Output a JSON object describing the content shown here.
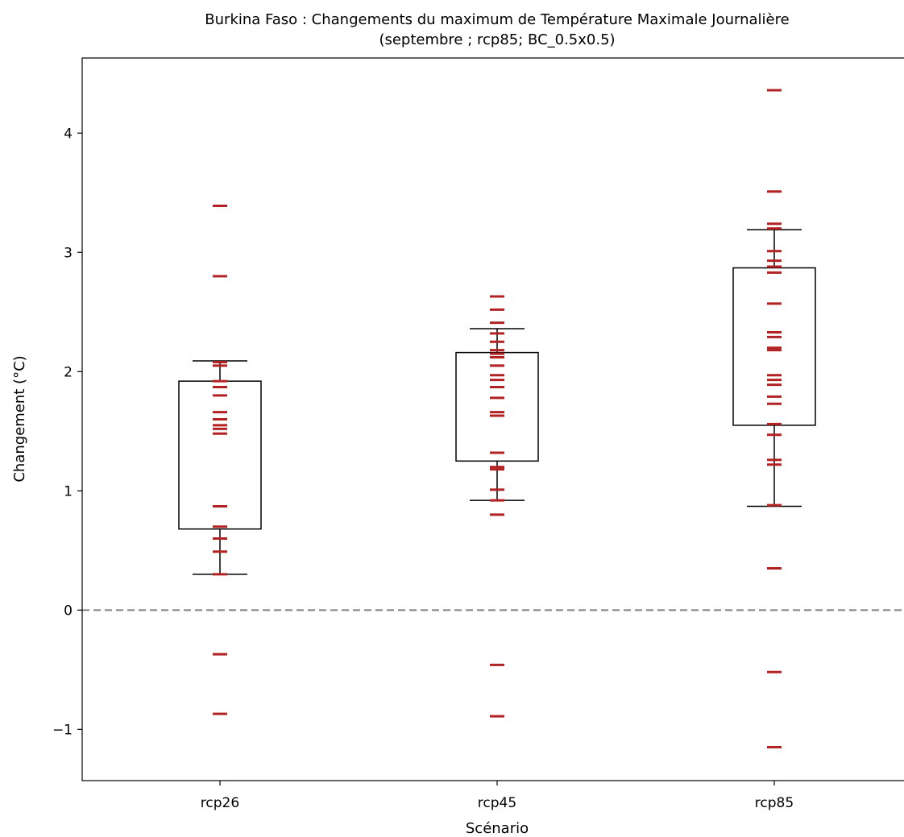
{
  "chart_data": {
    "type": "box",
    "title": "Burkina Faso : Changements du maximum de Température Maximale Journalière",
    "subtitle": "(septembre ; rcp85; BC_0.5x0.5)",
    "xlabel": "Scénario",
    "ylabel": "Changement (°C)",
    "ylim": [
      -1.43,
      4.63
    ],
    "yticks": [
      -1,
      0,
      1,
      2,
      3,
      4
    ],
    "ytick_labels": [
      "−1",
      "0",
      "1",
      "2",
      "3",
      "4"
    ],
    "categories": [
      "rcp26",
      "rcp45",
      "rcp85"
    ],
    "reference_line": {
      "y": 0,
      "style": "dashed",
      "color": "#808080"
    },
    "grid": false,
    "colors": {
      "points": "#b22222",
      "box": "#000000",
      "reference": "#808080"
    },
    "boxes": [
      {
        "category": "rcp26",
        "whisker_low": 0.3,
        "q1": 0.68,
        "q3": 1.92,
        "whisker_high": 2.09
      },
      {
        "category": "rcp45",
        "whisker_low": 0.92,
        "q1": 1.25,
        "q3": 2.16,
        "whisker_high": 2.36
      },
      {
        "category": "rcp85",
        "whisker_low": 0.87,
        "q1": 1.55,
        "q3": 2.87,
        "whisker_high": 3.19
      }
    ],
    "series": [
      {
        "category": "rcp26",
        "values": [
          3.39,
          2.8,
          2.08,
          2.05,
          1.92,
          1.87,
          1.8,
          1.66,
          1.6,
          1.55,
          1.52,
          1.48,
          0.87,
          0.7,
          0.6,
          0.49,
          0.3,
          -0.37,
          -0.87
        ]
      },
      {
        "category": "rcp45",
        "values": [
          2.63,
          2.52,
          2.41,
          2.32,
          2.25,
          2.18,
          2.15,
          2.12,
          2.05,
          1.97,
          1.93,
          1.87,
          1.78,
          1.66,
          1.63,
          1.32,
          1.2,
          1.18,
          1.01,
          0.92,
          0.8,
          -0.46,
          -0.89
        ]
      },
      {
        "category": "rcp85",
        "values": [
          4.36,
          3.51,
          3.24,
          3.2,
          3.01,
          2.93,
          2.88,
          2.83,
          2.57,
          2.33,
          2.29,
          2.2,
          2.18,
          1.97,
          1.93,
          1.89,
          1.79,
          1.73,
          1.56,
          1.47,
          1.26,
          1.22,
          0.88,
          0.35,
          -0.52,
          -1.15
        ]
      }
    ]
  }
}
